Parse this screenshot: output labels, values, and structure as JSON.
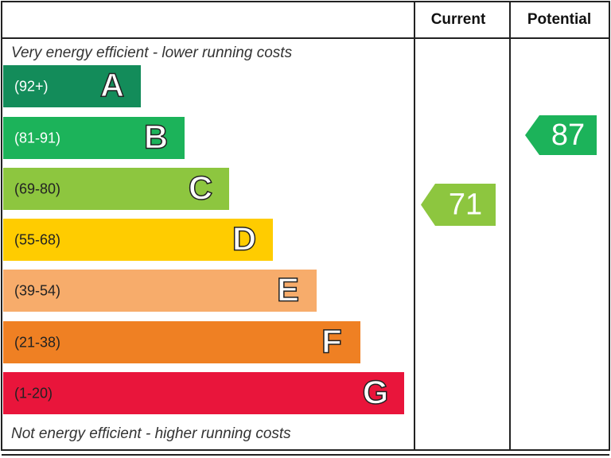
{
  "header": {
    "current": "Current",
    "potential": "Potential"
  },
  "top_note": "Very energy efficient - lower running costs",
  "bottom_note": "Not energy efficient - higher running costs",
  "bands": [
    {
      "range": "(92+)",
      "letter": "A",
      "color": "#138c5a"
    },
    {
      "range": "(81-91)",
      "letter": "B",
      "color": "#1cb35a"
    },
    {
      "range": "(69-80)",
      "letter": "C",
      "color": "#8dc63f"
    },
    {
      "range": "(55-68)",
      "letter": "D",
      "color": "#ffcc00"
    },
    {
      "range": "(39-54)",
      "letter": "E",
      "color": "#f7ac6b"
    },
    {
      "range": "(21-38)",
      "letter": "F",
      "color": "#ef8023"
    },
    {
      "range": "(1-20)",
      "letter": "G",
      "color": "#e9153b"
    }
  ],
  "current": {
    "value": "71",
    "color": "#8dc63f"
  },
  "potential": {
    "value": "87",
    "color": "#1cb35a"
  }
}
